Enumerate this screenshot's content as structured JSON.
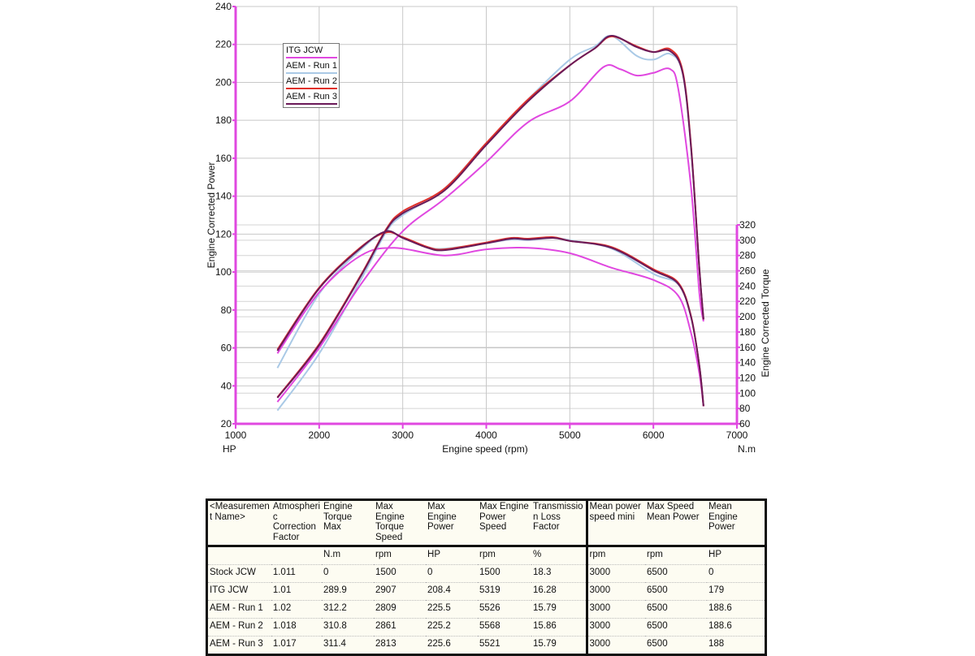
{
  "chart_data": {
    "type": "line",
    "xlabel": "Engine speed (rpm)",
    "ylabel": "Engine Corrected Power",
    "y2label": "Engine Corrected Torque",
    "left_unit": "HP",
    "right_unit": "N.m",
    "xlim": [
      1000,
      7000
    ],
    "ylim": [
      20,
      240
    ],
    "y2lim": [
      60,
      320
    ],
    "x_ticks": [
      1000,
      2000,
      3000,
      4000,
      5000,
      6000,
      7000
    ],
    "y_ticks": [
      20,
      40,
      60,
      80,
      100,
      120,
      140,
      160,
      180,
      200,
      220,
      240
    ],
    "y2_ticks": [
      60,
      80,
      100,
      120,
      140,
      160,
      180,
      200,
      220,
      240,
      260,
      280,
      300,
      320
    ],
    "grid": true,
    "legend_position": "top-left",
    "axis_color": "#e048e0",
    "legend": [
      "ITG JCW",
      "AEM - Run 1",
      "AEM - Run 2",
      "AEM - Run 3"
    ],
    "series": [
      {
        "name": "ITG JCW",
        "color": "#e048e0",
        "power": {
          "x": [
            1500,
            2000,
            2500,
            3000,
            3500,
            4000,
            4500,
            5000,
            5400,
            5600,
            5800,
            6000,
            6200,
            6300,
            6450,
            6550,
            6600
          ],
          "y": [
            31.5,
            60,
            93.6,
            121.5,
            138.6,
            158,
            179,
            190,
            208,
            207,
            203.6,
            205,
            207,
            196,
            145,
            89,
            74
          ]
        },
        "torque": {
          "x": [
            1500,
            2000,
            2500,
            2900,
            3500,
            4000,
            4500,
            5000,
            5500,
            6000,
            6300,
            6450,
            6550,
            6600
          ],
          "y": [
            152,
            232,
            280,
            290,
            280,
            288,
            290,
            283,
            264,
            248,
            227,
            179,
            126,
            83
          ]
        }
      },
      {
        "name": "AEM - Run 1",
        "color": "#a9c9e6",
        "power": {
          "x": [
            1500,
            2000,
            2500,
            2800,
            3000,
            3500,
            4000,
            4500,
            5000,
            5300,
            5500,
            5800,
            6000,
            6200,
            6350,
            6450,
            6550,
            6600
          ],
          "y": [
            27,
            57,
            96,
            121,
            130,
            144,
            168,
            191,
            212,
            219,
            224.5,
            214,
            212,
            215,
            205,
            166,
            102,
            75
          ]
        },
        "torque": {
          "x": [
            1500,
            2000,
            2500,
            2800,
            3000,
            3300,
            3500,
            4000,
            4300,
            4500,
            4800,
            5000,
            5500,
            6000,
            6300,
            6450,
            6550,
            6600
          ],
          "y": [
            133,
            230,
            288,
            311,
            303,
            291,
            289,
            296,
            301,
            300,
            303,
            300,
            289,
            256,
            242,
            200,
            136,
            83
          ]
        }
      },
      {
        "name": "AEM - Run 2",
        "color": "#e0302a",
        "power": {
          "x": [
            1500,
            2000,
            2500,
            2800,
            3000,
            3500,
            4000,
            4500,
            5000,
            5300,
            5500,
            5800,
            6000,
            6200,
            6350,
            6450,
            6550,
            6600
          ],
          "y": [
            34,
            62,
            98.5,
            122.5,
            132,
            144,
            168,
            191,
            209,
            218,
            224.2,
            219,
            216,
            217.5,
            206,
            167,
            102,
            75
          ]
        },
        "torque": {
          "x": [
            1500,
            2000,
            2500,
            2800,
            3000,
            3300,
            3500,
            4000,
            4300,
            4500,
            4800,
            5000,
            5500,
            6000,
            6300,
            6450,
            6550,
            6600
          ],
          "y": [
            157,
            238,
            291,
            310,
            304,
            291,
            288,
            297,
            303,
            302,
            304,
            299,
            291,
            262,
            244,
            201,
            136,
            83
          ]
        }
      },
      {
        "name": "AEM - Run 3",
        "color": "#6a1a58",
        "power": {
          "x": [
            1500,
            2000,
            2500,
            2800,
            3000,
            3500,
            4000,
            4500,
            5000,
            5300,
            5500,
            5800,
            6000,
            6200,
            6350,
            6450,
            6550,
            6600
          ],
          "y": [
            33.7,
            61.5,
            98,
            122,
            131,
            143,
            167,
            190,
            209,
            218,
            224.6,
            218.6,
            216,
            216.5,
            205,
            166,
            102,
            75
          ]
        },
        "torque": {
          "x": [
            1500,
            2000,
            2500,
            2800,
            3000,
            3300,
            3500,
            4000,
            4300,
            4500,
            4800,
            5000,
            5500,
            6000,
            6300,
            6450,
            6550,
            6600
          ],
          "y": [
            155.5,
            237,
            290,
            311.6,
            303,
            290,
            287,
            296,
            302,
            301,
            303,
            299,
            290,
            260.6,
            242.6,
            200,
            136,
            83
          ]
        }
      }
    ]
  },
  "table": {
    "headers": [
      "<Measuremen t Name>",
      "Atmospheri c Correction Factor",
      "Engine Torque Max",
      "Max Engine Torque Speed",
      "Max Engine Power",
      "Max Engine Power Speed",
      "Transmissio n Loss Factor",
      "Mean  power speed mini",
      "Max Speed Mean Power",
      "Mean Engine Power"
    ],
    "units": [
      "",
      "",
      "N.m",
      "rpm",
      "HP",
      "rpm",
      "%",
      "rpm",
      "rpm",
      "HP"
    ],
    "rows": [
      [
        "Stock JCW",
        "1.011",
        "0",
        "1500",
        "0",
        "1500",
        "18.3",
        "3000",
        "6500",
        "0"
      ],
      [
        "ITG JCW",
        "1.01",
        "289.9",
        "2907",
        "208.4",
        "5319",
        "16.28",
        "3000",
        "6500",
        "179"
      ],
      [
        "AEM - Run 1",
        "1.02",
        "312.2",
        "2809",
        "225.5",
        "5526",
        "15.79",
        "3000",
        "6500",
        "188.6"
      ],
      [
        "AEM - Run 2",
        "1.018",
        "310.8",
        "2861",
        "225.2",
        "5568",
        "15.86",
        "3000",
        "6500",
        "188.6"
      ],
      [
        "AEM - Run 3",
        "1.017",
        "311.4",
        "2813",
        "225.6",
        "5521",
        "15.79",
        "3000",
        "6500",
        "188"
      ]
    ]
  }
}
